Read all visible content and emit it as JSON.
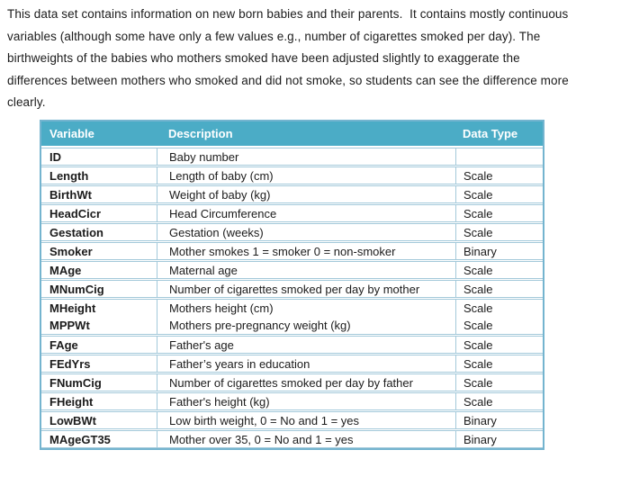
{
  "intro": {
    "lines": [
      "This data set contains information on new born babies and their parents.  It contains mostly continuous",
      "variables (although some have only a few values e.g., number of cigarettes smoked per day). The",
      "birthweights of the babies who mothers smoked have been adjusted slightly to exaggerate the",
      "differences between mothers who smoked and did not smoke, so students can see the difference more",
      "clearly."
    ]
  },
  "table": {
    "header_bg": "#4BACC6",
    "border_color": "#A3C9DA",
    "headers": [
      "Variable",
      "Description",
      "Data Type"
    ],
    "rows": [
      {
        "variable": "ID",
        "description": "Baby number",
        "data_type": ""
      },
      {
        "variable": "Length",
        "description": "Length of baby (cm)",
        "data_type": "Scale"
      },
      {
        "variable": "BirthWt",
        "description": "Weight of baby (kg)",
        "data_type": "Scale"
      },
      {
        "variable": "HeadCicr",
        "description": "Head Circumference",
        "data_type": "Scale"
      },
      {
        "variable": "Gestation",
        "description": "Gestation (weeks)",
        "data_type": "Scale"
      },
      {
        "variable": "Smoker",
        "description": "Mother smokes 1 = smoker 0 = non-smoker",
        "data_type": "Binary"
      },
      {
        "variable": "MAge",
        "description": "Maternal age",
        "data_type": "Scale"
      },
      {
        "variable": "MNumCig",
        "description": "Number of cigarettes smoked per day by mother",
        "data_type": "Scale"
      },
      {
        "variable": "MHeight",
        "description": "Mothers height (cm)",
        "data_type": "Scale"
      },
      {
        "variable": "MPPWt",
        "description": "Mothers pre-pregnancy weight (kg)",
        "data_type": "Scale"
      },
      {
        "variable": "FAge",
        "description": "Father's age",
        "data_type": "Scale"
      },
      {
        "variable": "FEdYrs",
        "description": "Father’s years in education",
        "data_type": "Scale"
      },
      {
        "variable": "FNumCig",
        "description": "Number of cigarettes smoked per day by father",
        "data_type": "Scale"
      },
      {
        "variable": "FHeight",
        "description": "Father's height (kg)",
        "data_type": "Scale"
      },
      {
        "variable": "LowBWt",
        "description": "Low birth weight, 0 = No and 1 = yes",
        "data_type": "Binary"
      },
      {
        "variable": "MAgeGT35",
        "description": "Mother over 35, 0 = No and 1 = yes",
        "data_type": "Binary"
      }
    ]
  }
}
